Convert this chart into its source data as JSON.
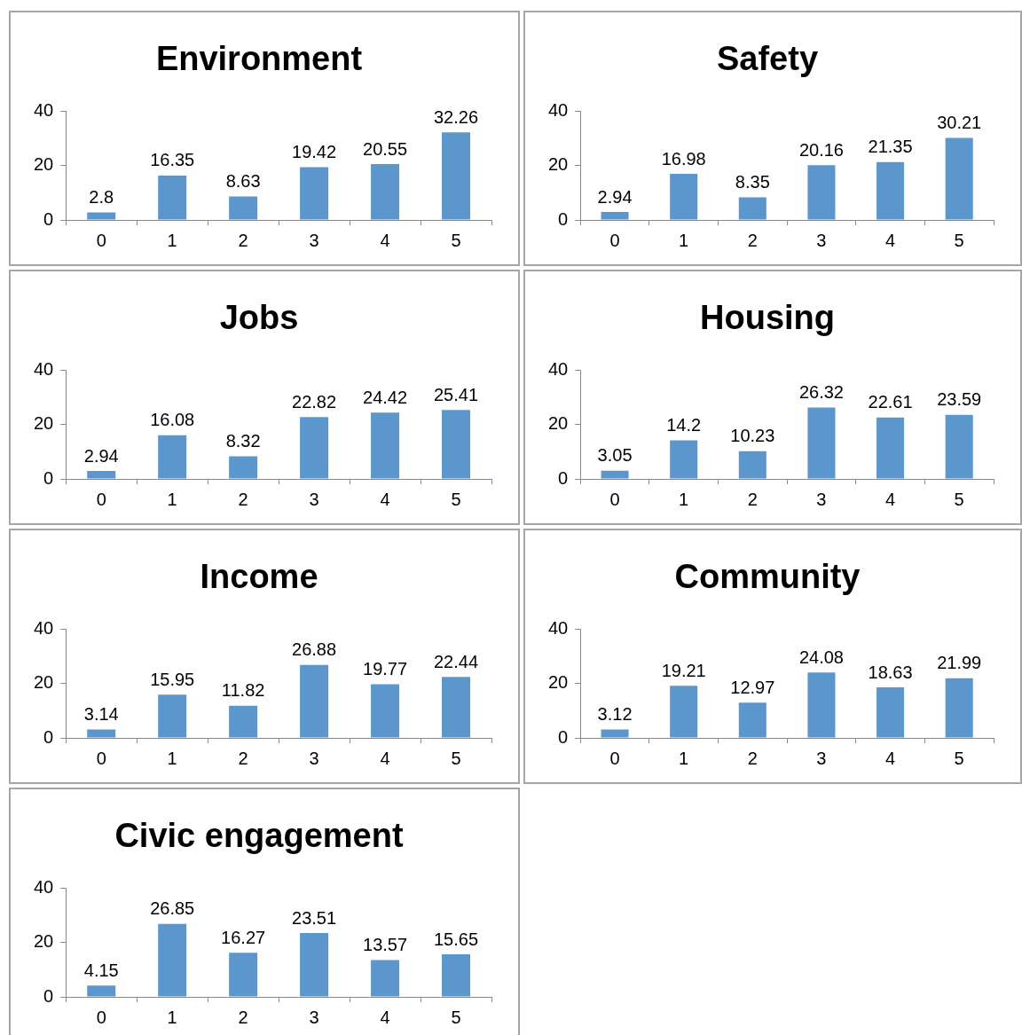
{
  "chart_data": [
    {
      "type": "bar",
      "title": "Environment",
      "categories": [
        "0",
        "1",
        "2",
        "3",
        "4",
        "5"
      ],
      "values": [
        2.8,
        16.35,
        8.63,
        19.42,
        20.55,
        32.26
      ],
      "color": "#5b96cc",
      "ylim": [
        0,
        40
      ],
      "yticks": [
        0,
        20,
        40
      ],
      "grid": false,
      "legend": false,
      "data_labels": true
    },
    {
      "type": "bar",
      "title": "Safety",
      "categories": [
        "0",
        "1",
        "2",
        "3",
        "4",
        "5"
      ],
      "values": [
        2.94,
        16.98,
        8.35,
        20.16,
        21.35,
        30.21
      ],
      "color": "#5b96cc",
      "ylim": [
        0,
        40
      ],
      "yticks": [
        0,
        20,
        40
      ],
      "grid": false,
      "legend": false,
      "data_labels": true
    },
    {
      "type": "bar",
      "title": "Jobs",
      "categories": [
        "0",
        "1",
        "2",
        "3",
        "4",
        "5"
      ],
      "values": [
        2.94,
        16.08,
        8.32,
        22.82,
        24.42,
        25.41
      ],
      "color": "#5b96cc",
      "ylim": [
        0,
        40
      ],
      "yticks": [
        0,
        20,
        40
      ],
      "grid": false,
      "legend": false,
      "data_labels": true
    },
    {
      "type": "bar",
      "title": "Housing",
      "categories": [
        "0",
        "1",
        "2",
        "3",
        "4",
        "5"
      ],
      "values": [
        3.05,
        14.2,
        10.23,
        26.32,
        22.61,
        23.59
      ],
      "color": "#5b96cc",
      "ylim": [
        0,
        40
      ],
      "yticks": [
        0,
        20,
        40
      ],
      "grid": false,
      "legend": false,
      "data_labels": true
    },
    {
      "type": "bar",
      "title": "Income",
      "categories": [
        "0",
        "1",
        "2",
        "3",
        "4",
        "5"
      ],
      "values": [
        3.14,
        15.95,
        11.82,
        26.88,
        19.77,
        22.44
      ],
      "color": "#5b96cc",
      "ylim": [
        0,
        40
      ],
      "yticks": [
        0,
        20,
        40
      ],
      "grid": false,
      "legend": false,
      "data_labels": true
    },
    {
      "type": "bar",
      "title": "Community",
      "categories": [
        "0",
        "1",
        "2",
        "3",
        "4",
        "5"
      ],
      "values": [
        3.12,
        19.21,
        12.97,
        24.08,
        18.63,
        21.99
      ],
      "color": "#5b96cc",
      "ylim": [
        0,
        40
      ],
      "yticks": [
        0,
        20,
        40
      ],
      "grid": false,
      "legend": false,
      "data_labels": true
    },
    {
      "type": "bar",
      "title": "Civic engagement",
      "categories": [
        "0",
        "1",
        "2",
        "3",
        "4",
        "5"
      ],
      "values": [
        4.15,
        26.85,
        16.27,
        23.51,
        13.57,
        15.65
      ],
      "color": "#5b96cc",
      "ylim": [
        0,
        40
      ],
      "yticks": [
        0,
        20,
        40
      ],
      "grid": false,
      "legend": false,
      "data_labels": true
    }
  ]
}
